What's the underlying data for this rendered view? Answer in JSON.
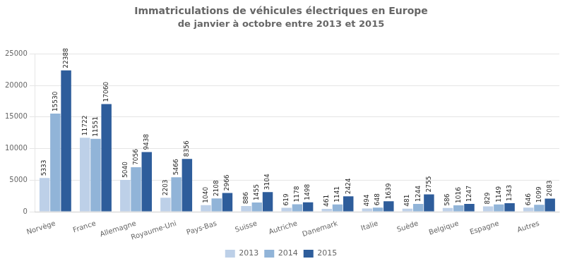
{
  "chart_data": {
    "type": "bar",
    "title": "Immatriculations de véhicules électriques en Europe",
    "subtitle": "de janvier à octobre entre 2013 et 2015",
    "categories": [
      "Norvège",
      "France",
      "Allemagne",
      "Royaume-Uni",
      "Pays-Bas",
      "Suisse",
      "Autriche",
      "Danemark",
      "Italie",
      "Suède",
      "Belgique",
      "Espagne",
      "Autres"
    ],
    "series": [
      {
        "name": "2013",
        "color": "#bdd0e8",
        "values": [
          5333,
          11722,
          5040,
          2203,
          1040,
          886,
          619,
          461,
          494,
          481,
          586,
          829,
          646
        ]
      },
      {
        "name": "2014",
        "color": "#91b4d8",
        "values": [
          15530,
          11551,
          7056,
          5466,
          2108,
          1455,
          1178,
          1141,
          648,
          1244,
          1016,
          1149,
          1099
        ]
      },
      {
        "name": "2015",
        "color": "#2e5d9b",
        "values": [
          22388,
          17060,
          9438,
          8356,
          2966,
          3104,
          1498,
          2424,
          1639,
          2755,
          1247,
          1343,
          2083
        ]
      }
    ],
    "ylim": [
      0,
      25000
    ],
    "yticks": [
      0,
      5000,
      10000,
      15000,
      20000,
      25000
    ],
    "grid": true,
    "legend": "bottom",
    "data_labels": true
  }
}
